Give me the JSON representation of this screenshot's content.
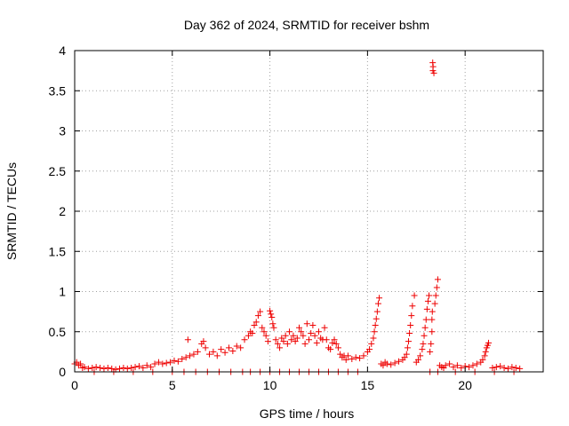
{
  "chart_data": {
    "type": "scatter",
    "title": "Day 362 of 2024, SRMTID for receiver bshm",
    "xlabel": "GPS time / hours",
    "ylabel": "SRMTID / TECUs",
    "xlim": [
      0,
      24
    ],
    "ylim": [
      0,
      4
    ],
    "xticks": [
      0,
      5,
      10,
      15,
      20
    ],
    "xtick_labels": [
      "0",
      "5",
      "10",
      "15",
      "20"
    ],
    "yticks": [
      0,
      0.5,
      1,
      1.5,
      2,
      2.5,
      3,
      3.5,
      4
    ],
    "ytick_labels": [
      "0",
      "0.5",
      "1",
      "1.5",
      "2",
      "2.5",
      "3",
      "3.5",
      "4"
    ],
    "grid": true,
    "marker": "+",
    "marker_color": "#ee0000",
    "series": [
      {
        "name": "SRMTID",
        "x": [
          0.0,
          0.1,
          0.2,
          0.3,
          0.4,
          0.5,
          0.7,
          0.9,
          1.1,
          1.3,
          1.5,
          1.7,
          1.9,
          2.1,
          2.3,
          2.5,
          2.7,
          2.9,
          3.1,
          3.3,
          3.5,
          3.7,
          3.9,
          4.1,
          4.3,
          4.5,
          4.7,
          4.9,
          5.1,
          5.3,
          5.5,
          5.7,
          5.8,
          5.9,
          6.1,
          6.3,
          6.5,
          6.6,
          6.7,
          6.9,
          7.1,
          7.3,
          7.5,
          7.7,
          7.9,
          8.1,
          8.3,
          8.5,
          8.7,
          8.9,
          9.0,
          9.1,
          9.2,
          9.3,
          9.4,
          9.5,
          9.6,
          9.7,
          9.8,
          9.9,
          10.0,
          10.05,
          10.1,
          10.15,
          10.2,
          10.3,
          10.4,
          10.5,
          10.6,
          10.7,
          10.8,
          10.9,
          11.0,
          11.1,
          11.2,
          11.3,
          11.4,
          11.5,
          11.6,
          11.7,
          11.8,
          11.9,
          12.0,
          12.1,
          12.2,
          12.3,
          12.4,
          12.5,
          12.6,
          12.7,
          12.8,
          12.9,
          13.0,
          13.1,
          13.2,
          13.3,
          13.4,
          13.5,
          13.6,
          13.7,
          13.8,
          13.9,
          14.0,
          14.2,
          14.4,
          14.6,
          14.8,
          15.0,
          15.1,
          15.2,
          15.3,
          15.35,
          15.4,
          15.45,
          15.5,
          15.55,
          15.6,
          15.7,
          15.8,
          15.9,
          16.0,
          16.2,
          16.4,
          16.6,
          16.8,
          16.9,
          17.0,
          17.05,
          17.1,
          17.15,
          17.2,
          17.25,
          17.3,
          17.4,
          17.5,
          17.6,
          17.7,
          17.8,
          17.85,
          17.9,
          17.95,
          18.0,
          18.05,
          18.1,
          18.15,
          18.2,
          18.25,
          18.3,
          18.3,
          18.32,
          18.34,
          18.36,
          18.35,
          18.4,
          18.45,
          18.5,
          18.55,
          18.6,
          18.7,
          18.8,
          18.9,
          19.0,
          19.2,
          19.4,
          19.6,
          19.8,
          20.0,
          20.2,
          20.4,
          20.6,
          20.8,
          20.9,
          21.0,
          21.05,
          21.1,
          21.15,
          21.2,
          21.4,
          21.6,
          21.8,
          22.0,
          22.2,
          22.4,
          22.6,
          22.8,
          1.0,
          2.0,
          3.0,
          4.0,
          5.0,
          5.6,
          6.2,
          6.8,
          7.4,
          8.0,
          8.6,
          9.0,
          9.5,
          10.0,
          10.5,
          11.0,
          11.5,
          12.0,
          12.5,
          13.0,
          13.5,
          14.0,
          14.5,
          18.2,
          18.6,
          19.5,
          20.5,
          21.5,
          22.5
        ],
        "y": [
          0.1,
          0.12,
          0.08,
          0.1,
          0.05,
          0.06,
          0.04,
          0.05,
          0.06,
          0.05,
          0.04,
          0.05,
          0.04,
          0.03,
          0.04,
          0.05,
          0.04,
          0.05,
          0.06,
          0.07,
          0.05,
          0.08,
          0.06,
          0.1,
          0.12,
          0.1,
          0.11,
          0.12,
          0.14,
          0.13,
          0.16,
          0.18,
          0.4,
          0.2,
          0.22,
          0.25,
          0.35,
          0.38,
          0.3,
          0.22,
          0.25,
          0.2,
          0.28,
          0.24,
          0.3,
          0.26,
          0.32,
          0.3,
          0.4,
          0.45,
          0.5,
          0.48,
          0.58,
          0.62,
          0.7,
          0.75,
          0.55,
          0.5,
          0.45,
          0.38,
          0.76,
          0.72,
          0.68,
          0.6,
          0.55,
          0.4,
          0.35,
          0.3,
          0.42,
          0.38,
          0.45,
          0.35,
          0.5,
          0.4,
          0.45,
          0.38,
          0.42,
          0.55,
          0.5,
          0.45,
          0.35,
          0.6,
          0.4,
          0.48,
          0.58,
          0.45,
          0.36,
          0.5,
          0.42,
          0.4,
          0.55,
          0.4,
          0.3,
          0.28,
          0.36,
          0.4,
          0.35,
          0.3,
          0.22,
          0.18,
          0.2,
          0.15,
          0.2,
          0.16,
          0.18,
          0.17,
          0.2,
          0.25,
          0.28,
          0.35,
          0.42,
          0.5,
          0.58,
          0.66,
          0.75,
          0.85,
          0.92,
          0.1,
          0.08,
          0.12,
          0.1,
          0.09,
          0.11,
          0.13,
          0.15,
          0.18,
          0.22,
          0.3,
          0.38,
          0.48,
          0.58,
          0.7,
          0.82,
          0.95,
          0.12,
          0.15,
          0.2,
          0.28,
          0.35,
          0.45,
          0.55,
          0.65,
          0.78,
          0.88,
          0.95,
          0.25,
          0.35,
          0.5,
          0.65,
          0.75,
          3.85,
          3.8,
          3.75,
          3.72,
          0.85,
          0.95,
          1.05,
          1.15,
          0.08,
          0.06,
          0.05,
          0.08,
          0.1,
          0.06,
          0.08,
          0.05,
          0.07,
          0.06,
          0.08,
          0.1,
          0.12,
          0.15,
          0.2,
          0.25,
          0.3,
          0.33,
          0.36,
          0.05,
          0.06,
          0.07,
          0.05,
          0.04,
          0.06,
          0.05,
          0.04,
          0.0,
          0.0,
          0.0,
          0.0,
          0.0,
          0.0,
          0.0,
          0.0,
          0.0,
          0.0,
          0.0,
          0.0,
          0.0,
          0.0,
          0.0,
          0.0,
          0.0,
          0.0,
          0.0,
          0.0,
          0.0,
          0.0,
          0.0,
          0.0,
          0.0,
          0.0,
          0.0,
          0.0,
          0.0
        ]
      }
    ]
  }
}
